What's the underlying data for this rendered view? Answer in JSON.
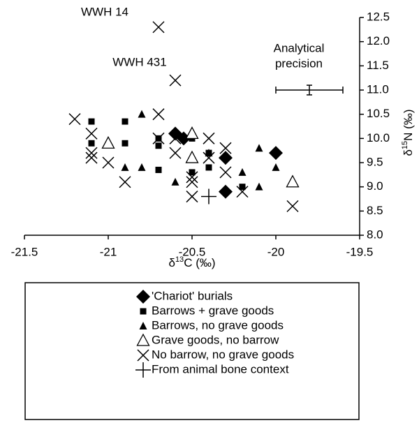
{
  "chart_data": {
    "type": "scatter",
    "xlabel": [
      "δ",
      "13",
      "C (‰)"
    ],
    "ylabel": [
      "δ",
      "15",
      "N (‰)"
    ],
    "xlim": [
      -21.5,
      -19.5
    ],
    "xticks": [
      -21.5,
      -21,
      -20.5,
      -20,
      -19.5
    ],
    "ylim": [
      8.0,
      12.5
    ],
    "yticks": [
      {
        "value": 8.0,
        "label": "8.0"
      },
      {
        "value": 8.5,
        "label": "8.5"
      },
      {
        "value": 9.0,
        "label": "9.0"
      },
      {
        "value": 9.5,
        "label": "9.5"
      },
      {
        "value": 10.0,
        "label": "10.0"
      },
      {
        "value": 10.5,
        "label": "10.5"
      },
      {
        "value": 11.0,
        "label": "11.0"
      },
      {
        "value": 11.5,
        "label": "11.5"
      },
      {
        "value": 12.0,
        "label": "12.0"
      },
      {
        "value": 12.5,
        "label": "12.5"
      }
    ],
    "series": [
      {
        "name": "'Chariot' burials",
        "marker": "diamond",
        "color": "#000000",
        "x": [
          -20.6,
          -20.55,
          -20.3,
          -20.3,
          -20.0
        ],
        "values": [
          10.1,
          10.0,
          9.6,
          8.9,
          9.7
        ]
      },
      {
        "name": "Barrows + grave goods",
        "marker": "square",
        "color": "#000000",
        "x": [
          -21.1,
          -21.1,
          -20.9,
          -20.9,
          -20.7,
          -20.7,
          -20.7,
          -20.5,
          -20.5,
          -20.4,
          -20.4,
          -20.2
        ],
        "values": [
          9.9,
          10.35,
          10.35,
          9.9,
          10.0,
          9.85,
          9.35,
          10.0,
          9.3,
          9.7,
          9.4,
          9.0
        ]
      },
      {
        "name": "Barrows, no grave goods",
        "marker": "triangle",
        "color": "#000000",
        "x": [
          -20.9,
          -20.8,
          -20.8,
          -20.6,
          -20.5,
          -20.4,
          -20.2,
          -20.1,
          -20.1,
          -20.0
        ],
        "values": [
          9.4,
          9.4,
          10.5,
          9.1,
          9.6,
          9.7,
          9.3,
          9.8,
          9.0,
          9.4
        ]
      },
      {
        "name": "Grave goods, no barrow",
        "marker": "open-triangle",
        "color": "#000000",
        "x": [
          -21.0,
          -20.5,
          -20.5,
          -19.9
        ],
        "values": [
          9.9,
          10.1,
          9.6,
          9.1
        ]
      },
      {
        "name": "No barrow, no grave goods",
        "marker": "cross",
        "color": "#000000",
        "x": [
          -21.2,
          -21.1,
          -21.1,
          -21.1,
          -21.0,
          -20.9,
          -20.7,
          -20.7,
          -20.7,
          -20.6,
          -20.6,
          -20.6,
          -20.5,
          -20.5,
          -20.5,
          -20.4,
          -20.4,
          -20.3,
          -20.3,
          -20.2,
          -19.9
        ],
        "values": [
          10.4,
          10.1,
          9.7,
          9.6,
          9.5,
          9.1,
          12.3,
          10.5,
          10.0,
          11.2,
          10.0,
          9.7,
          9.2,
          9.1,
          8.8,
          10.0,
          9.6,
          9.8,
          9.3,
          8.9,
          8.6
        ]
      },
      {
        "name": "From animal bone context",
        "marker": "plus",
        "color": "#000000",
        "x": [
          -20.4
        ],
        "values": [
          8.8
        ]
      }
    ],
    "annotations": [
      "WWH 14",
      "WWH 431"
    ],
    "precision": {
      "label": [
        "Analytical",
        "precision"
      ],
      "x": -19.8,
      "y": 11.0,
      "xerr": 0.2,
      "yerr": 0.2
    }
  }
}
